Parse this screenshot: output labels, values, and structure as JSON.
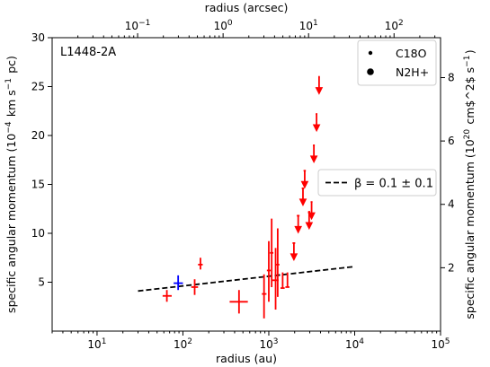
{
  "chart_data": {
    "type": "scatter",
    "annotation": "L1448-2A",
    "xlabel": "radius (au)",
    "ylabel": "specific angular momentum (10$^{-4}$ km s$^{-1}$ pc)",
    "top_xlabel": "radius (arcsec)",
    "right_ylabel": "specific angular momentum (10$^{20}$ cm$^2$ s$^{-1}$)",
    "x_scale": "log",
    "xlim": [
      3,
      100000
    ],
    "ylim": [
      0,
      30
    ],
    "top_xlim": [
      0.01,
      350
    ],
    "right_ylim": [
      0,
      9.26
    ],
    "x_ticks": [
      {
        "value": 10,
        "label": "10¹"
      },
      {
        "value": 100,
        "label": "10²"
      },
      {
        "value": 1000,
        "label": "10³"
      },
      {
        "value": 10000,
        "label": "10⁴"
      },
      {
        "value": 100000,
        "label": "10⁵"
      }
    ],
    "top_x_ticks": [
      {
        "value": 0.1,
        "label": "10⁻¹"
      },
      {
        "value": 1,
        "label": "10⁰"
      },
      {
        "value": 10,
        "label": "10¹"
      },
      {
        "value": 100,
        "label": "10²"
      }
    ],
    "y_ticks": [
      5,
      10,
      15,
      20,
      25,
      30
    ],
    "right_ticks": [
      2,
      4,
      6,
      8
    ],
    "legend_top": {
      "placement": "top-right",
      "entries": [
        {
          "label": "C18O",
          "marker": "small-dot"
        },
        {
          "label": "N2H+",
          "marker": "large-dot"
        }
      ]
    },
    "legend_mid": {
      "placement": "center-right",
      "label": "β = 0.1 ± 0.1",
      "style": "dashed"
    },
    "fit_line": {
      "x": [
        30,
        10000
      ],
      "y": [
        4.1,
        6.6
      ],
      "color": "#000000"
    },
    "colors": {
      "c18o": "#ff0000",
      "n2h": "#0000ff",
      "fit": "#000000"
    },
    "series": [
      {
        "name": "C18O",
        "color": "#ff0000",
        "points": [
          {
            "x": 65,
            "y": 3.6,
            "xerr": [
              58,
              74
            ],
            "yerr": [
              3.0,
              4.2
            ]
          },
          {
            "x": 137,
            "y": 4.5,
            "xerr": [
              125,
              150
            ],
            "yerr": [
              3.7,
              5.3
            ]
          },
          {
            "x": 160,
            "y": 6.8,
            "xerr": [
              150,
              170
            ],
            "yerr": [
              6.3,
              7.5
            ]
          },
          {
            "x": 450,
            "y": 3.0,
            "xerr": [
              350,
              570
            ],
            "yerr": [
              1.8,
              4.2
            ]
          },
          {
            "x": 880,
            "y": 3.8,
            "xerr": [
              830,
              940
            ],
            "yerr": [
              1.3,
              5.8
            ]
          },
          {
            "x": 1000,
            "y": 6.2,
            "xerr": [
              950,
              1050
            ],
            "yerr": [
              3.0,
              9.2
            ]
          },
          {
            "x": 1080,
            "y": 8.0,
            "xerr": [
              1030,
              1130
            ],
            "yerr": [
              4.5,
              11.5
            ]
          },
          {
            "x": 1200,
            "y": 5.2,
            "xerr": [
              1100,
              1300
            ],
            "yerr": [
              2.2,
              8.5
            ]
          },
          {
            "x": 1270,
            "y": 6.8,
            "xerr": [
              1210,
              1330
            ],
            "yerr": [
              3.5,
              10.5
            ]
          },
          {
            "x": 1450,
            "y": 4.4,
            "xerr": [
              1370,
              1530
            ],
            "yerr": [
              4.4,
              6.0
            ]
          },
          {
            "x": 1650,
            "y": 4.5,
            "xerr": [
              1560,
              1740
            ],
            "yerr": [
              4.5,
              6.0
            ]
          }
        ]
      },
      {
        "name": "C18O upper limits",
        "color": "#ff0000",
        "upper_limits": true,
        "points": [
          {
            "x": 1960,
            "y": 9.0,
            "xerr": [
              1890,
              2030
            ]
          },
          {
            "x": 2200,
            "y": 11.8,
            "xerr": [
              2120,
              2280
            ]
          },
          {
            "x": 2500,
            "y": 14.6,
            "xerr": [
              2420,
              2580
            ]
          },
          {
            "x": 2620,
            "y": 16.4,
            "xerr": [
              2540,
              2700
            ]
          },
          {
            "x": 2950,
            "y": 12.2,
            "xerr": [
              2870,
              3030
            ]
          },
          {
            "x": 3150,
            "y": 13.2,
            "xerr": [
              3070,
              3230
            ]
          },
          {
            "x": 3350,
            "y": 19.0,
            "xerr": [
              3270,
              3430
            ]
          },
          {
            "x": 3600,
            "y": 22.2,
            "xerr": [
              3520,
              3680
            ]
          },
          {
            "x": 3850,
            "y": 26.0,
            "xerr": [
              3770,
              3930
            ]
          }
        ]
      },
      {
        "name": "N2H+",
        "color": "#0000ff",
        "points": [
          {
            "x": 88,
            "y": 4.9,
            "xerr": [
              78,
              100
            ],
            "yerr": [
              4.2,
              5.7
            ]
          }
        ]
      }
    ]
  }
}
